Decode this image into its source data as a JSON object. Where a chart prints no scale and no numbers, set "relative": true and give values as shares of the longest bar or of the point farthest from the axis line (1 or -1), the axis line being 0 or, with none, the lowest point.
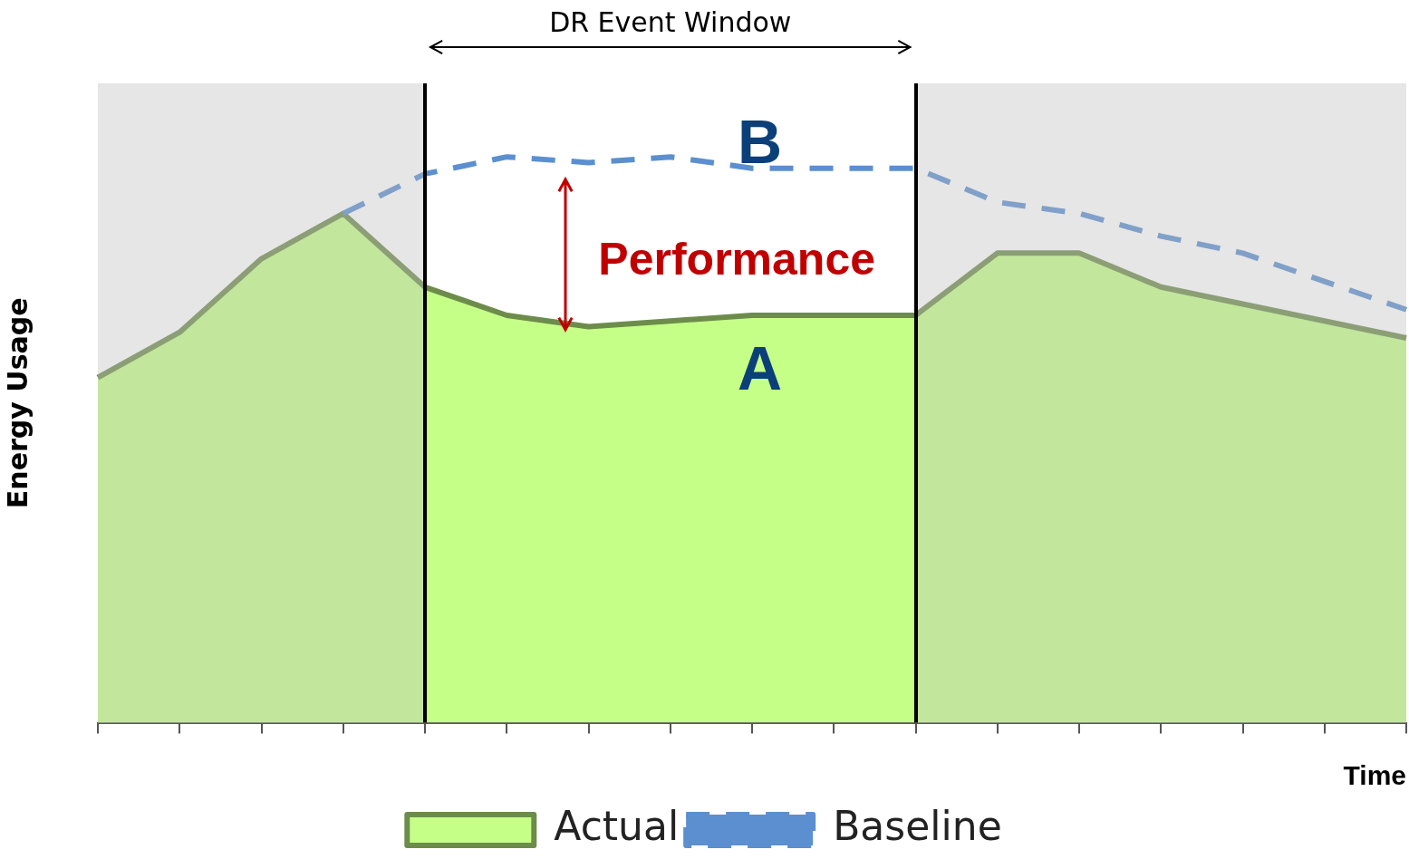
{
  "chart_data": {
    "type": "area",
    "relative": true,
    "xlabel": "Time",
    "ylabel": "Energy Usage",
    "categories": [
      null,
      null,
      null,
      null,
      null,
      null,
      null,
      null,
      null,
      null,
      null,
      null,
      null,
      null,
      null,
      null,
      null
    ],
    "series": [
      {
        "name": "Actual",
        "color": "#c6ff88",
        "values": [
          0.61,
          0.69,
          0.82,
          0.9,
          0.77,
          0.72,
          0.7,
          0.71,
          0.72,
          0.72,
          0.72,
          0.83,
          0.83,
          0.77,
          0.74,
          0.71,
          0.68
        ]
      },
      {
        "name": "Baseline",
        "type": "line",
        "color": "#5b8fd0",
        "line_style": "dashed",
        "marker": "none",
        "values": [
          null,
          null,
          null,
          0.9,
          0.97,
          1,
          0.99,
          1,
          0.98,
          0.98,
          0.98,
          0.92,
          0.9,
          0.86,
          0.83,
          0.78,
          0.73
        ]
      }
    ],
    "annotations": [
      "DR Event Window",
      "Performance",
      "A",
      "B"
    ],
    "grid": false,
    "legend": "bottom"
  }
}
